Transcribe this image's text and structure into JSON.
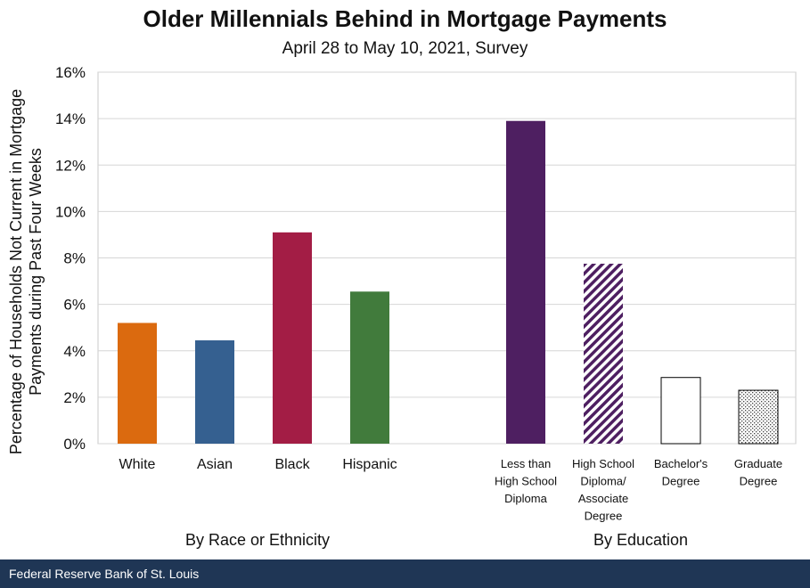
{
  "chart_data": {
    "type": "bar",
    "title": "Older Millennials Behind in Mortgage Payments",
    "subtitle": "April 28 to May 10, 2021, Survey",
    "ylabel_lines": [
      "Percentage of Households Not Current in Mortgage",
      "Payments during Past Four Weeks"
    ],
    "ylim": [
      0,
      16
    ],
    "yticks": [
      "0%",
      "2%",
      "4%",
      "6%",
      "8%",
      "10%",
      "12%",
      "14%",
      "16%"
    ],
    "grid": true,
    "groups": [
      {
        "label": "By Race or Ethnicity",
        "bars": [
          {
            "label_lines": [
              "White"
            ],
            "value": 5.2,
            "color": "#db6a0f",
            "pattern": "solid"
          },
          {
            "label_lines": [
              "Asian"
            ],
            "value": 4.45,
            "color": "#356090",
            "pattern": "solid"
          },
          {
            "label_lines": [
              "Black"
            ],
            "value": 9.1,
            "color": "#a31d45",
            "pattern": "solid"
          },
          {
            "label_lines": [
              "Hispanic"
            ],
            "value": 6.55,
            "color": "#417b3c",
            "pattern": "solid"
          }
        ]
      },
      {
        "label": "By Education",
        "bars": [
          {
            "label_lines": [
              "Less than",
              "High School",
              "Diploma"
            ],
            "value": 13.9,
            "color": "#4e1f61",
            "pattern": "solid"
          },
          {
            "label_lines": [
              "High School",
              "Diploma/",
              "Associate",
              "Degree"
            ],
            "value": 7.75,
            "color": "#4e1f61",
            "pattern": "diagonal-stripes"
          },
          {
            "label_lines": [
              "Bachelor's",
              "Degree"
            ],
            "value": 2.85,
            "color": "#000000",
            "pattern": "hollow"
          },
          {
            "label_lines": [
              "Graduate",
              "Degree"
            ],
            "value": 2.3,
            "color": "#000000",
            "pattern": "dots"
          }
        ]
      }
    ]
  },
  "footer": {
    "source": "Federal Reserve Bank of St. Louis"
  }
}
